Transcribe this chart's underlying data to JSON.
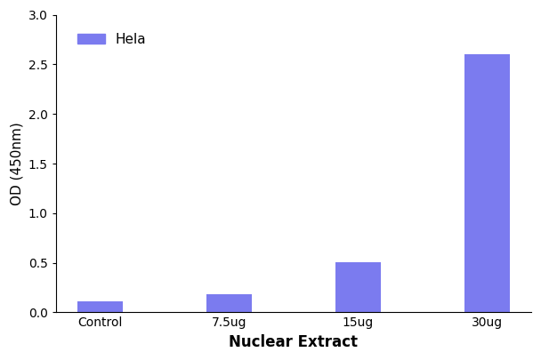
{
  "categories": [
    "Control",
    "7.5ug",
    "15ug",
    "30ug"
  ],
  "values": [
    0.11,
    0.18,
    0.51,
    2.6
  ],
  "bar_color": "#7b7bef",
  "xlabel": "Nuclear Extract",
  "ylabel": "OD (450nm)",
  "ylim": [
    0,
    3.0
  ],
  "yticks": [
    0.0,
    0.5,
    1.0,
    1.5,
    2.0,
    2.5,
    3.0
  ],
  "legend_label": "Hela",
  "background_color": "#ffffff",
  "bar_width": 0.35,
  "xlabel_fontsize": 12,
  "ylabel_fontsize": 11,
  "tick_fontsize": 10,
  "legend_fontsize": 11
}
